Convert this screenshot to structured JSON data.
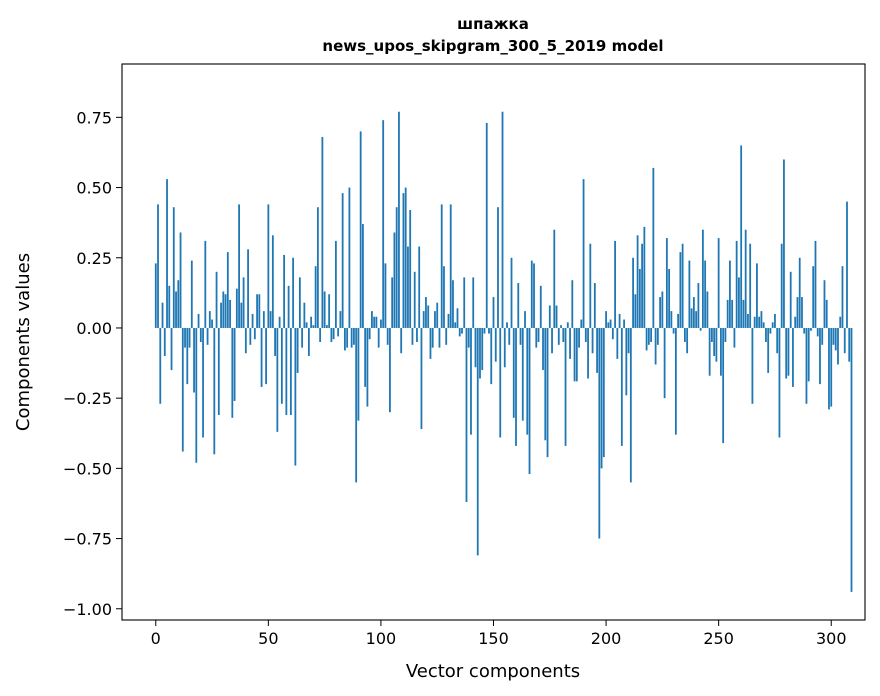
{
  "chart_data": {
    "type": "bar",
    "title": "шпажка",
    "subtitle": "news_upos_skipgram_300_5_2019 model",
    "xlabel": "Vector components",
    "ylabel": "Components values",
    "xlim": [
      -15,
      315
    ],
    "ylim": [
      -1.04,
      0.94
    ],
    "xticks": [
      0,
      50,
      100,
      150,
      200,
      250,
      300
    ],
    "yticks": [
      -1.0,
      -0.75,
      -0.5,
      -0.25,
      0.0,
      0.25,
      0.5,
      0.75
    ],
    "ytick_labels": [
      "−1.00",
      "−0.75",
      "−0.50",
      "−0.25",
      "0.00",
      "0.25",
      "0.50",
      "0.75"
    ],
    "bar_color": "#1f77b4",
    "grid": false,
    "values": [
      0.23,
      0.44,
      -0.27,
      0.09,
      -0.1,
      0.53,
      0.15,
      -0.15,
      0.43,
      0.13,
      0.17,
      0.34,
      -0.44,
      -0.07,
      -0.2,
      -0.07,
      0.24,
      -0.23,
      -0.48,
      0.05,
      -0.05,
      -0.39,
      0.31,
      -0.06,
      0.06,
      0.03,
      -0.45,
      0.2,
      -0.31,
      0.09,
      0.13,
      0.12,
      0.27,
      0.1,
      -0.32,
      -0.26,
      0.14,
      0.44,
      0.09,
      0.18,
      -0.09,
      0.28,
      -0.06,
      0.05,
      -0.04,
      0.12,
      0.12,
      -0.21,
      0.06,
      -0.2,
      0.44,
      0.06,
      0.33,
      -0.1,
      -0.37,
      0.04,
      -0.27,
      0.26,
      -0.31,
      0.15,
      -0.31,
      0.25,
      -0.49,
      -0.16,
      0.18,
      -0.07,
      0.09,
      0.02,
      -0.1,
      0.04,
      0.01,
      0.22,
      0.43,
      -0.05,
      0.68,
      0.13,
      0.01,
      0.12,
      -0.05,
      -0.04,
      0.31,
      -0.03,
      0.06,
      0.48,
      -0.08,
      -0.07,
      0.5,
      -0.07,
      -0.06,
      -0.55,
      -0.33,
      0.7,
      0.37,
      -0.21,
      -0.28,
      -0.04,
      0.06,
      0.04,
      0.04,
      -0.07,
      0.03,
      0.74,
      0.23,
      -0.06,
      -0.3,
      0.18,
      0.34,
      0.43,
      0.77,
      -0.09,
      0.48,
      0.5,
      0.29,
      0.42,
      -0.06,
      0.2,
      -0.05,
      0.29,
      -0.36,
      0.06,
      0.11,
      0.08,
      -0.11,
      -0.07,
      0.06,
      0.09,
      -0.07,
      0.44,
      0.22,
      -0.06,
      0.05,
      0.44,
      0.17,
      0.02,
      0.07,
      -0.03,
      -0.02,
      0.18,
      -0.62,
      -0.07,
      -0.38,
      0.18,
      -0.14,
      -0.81,
      -0.18,
      -0.15,
      -0.02,
      0.73,
      -0.02,
      -0.2,
      0.11,
      -0.12,
      0.43,
      -0.39,
      0.77,
      -0.14,
      0.02,
      -0.06,
      0.25,
      -0.32,
      -0.42,
      0.16,
      -0.06,
      -0.33,
      0.06,
      -0.38,
      -0.52,
      0.24,
      0.23,
      -0.07,
      -0.05,
      0.15,
      -0.15,
      -0.4,
      -0.46,
      0.08,
      -0.09,
      0.35,
      0.08,
      -0.06,
      0.01,
      -0.05,
      -0.42,
      0.02,
      -0.11,
      0.17,
      -0.19,
      -0.19,
      -0.07,
      0.03,
      0.53,
      -0.05,
      -0.18,
      0.3,
      -0.09,
      0.16,
      -0.16,
      -0.75,
      -0.5,
      -0.46,
      0.06,
      0.02,
      0.03,
      -0.04,
      0.31,
      -0.11,
      0.05,
      -0.42,
      0.03,
      -0.24,
      -0.09,
      -0.55,
      0.25,
      0.12,
      0.33,
      0.21,
      0.3,
      0.36,
      -0.08,
      -0.06,
      -0.05,
      0.57,
      -0.13,
      -0.06,
      0.11,
      0.13,
      -0.25,
      0.32,
      0.21,
      0.06,
      -0.02,
      -0.38,
      0.05,
      0.27,
      0.3,
      -0.05,
      -0.09,
      0.24,
      0.07,
      0.11,
      0.06,
      0.16,
      -0.01,
      0.35,
      0.24,
      0.13,
      -0.17,
      -0.05,
      -0.1,
      -0.12,
      0.32,
      -0.17,
      -0.41,
      -0.05,
      0.1,
      0.24,
      0.1,
      -0.07,
      0.31,
      0.18,
      0.65,
      0.1,
      0.35,
      0.05,
      0.3,
      -0.27,
      0.04,
      0.23,
      0.04,
      0.06,
      0.02,
      -0.05,
      -0.16,
      -0.02,
      0.02,
      0.05,
      -0.09,
      -0.39,
      0.3,
      0.6,
      -0.18,
      -0.17,
      0.2,
      -0.21,
      0.04,
      0.11,
      0.25,
      0.11,
      -0.02,
      -0.27,
      -0.19,
      -0.01,
      0.22,
      0.31,
      -0.03,
      -0.2,
      -0.06,
      0.17,
      0.1,
      -0.29,
      -0.28,
      -0.06,
      -0.08,
      -0.13,
      0.04,
      0.22,
      -0.09,
      0.45,
      -0.12,
      -0.94
    ]
  }
}
